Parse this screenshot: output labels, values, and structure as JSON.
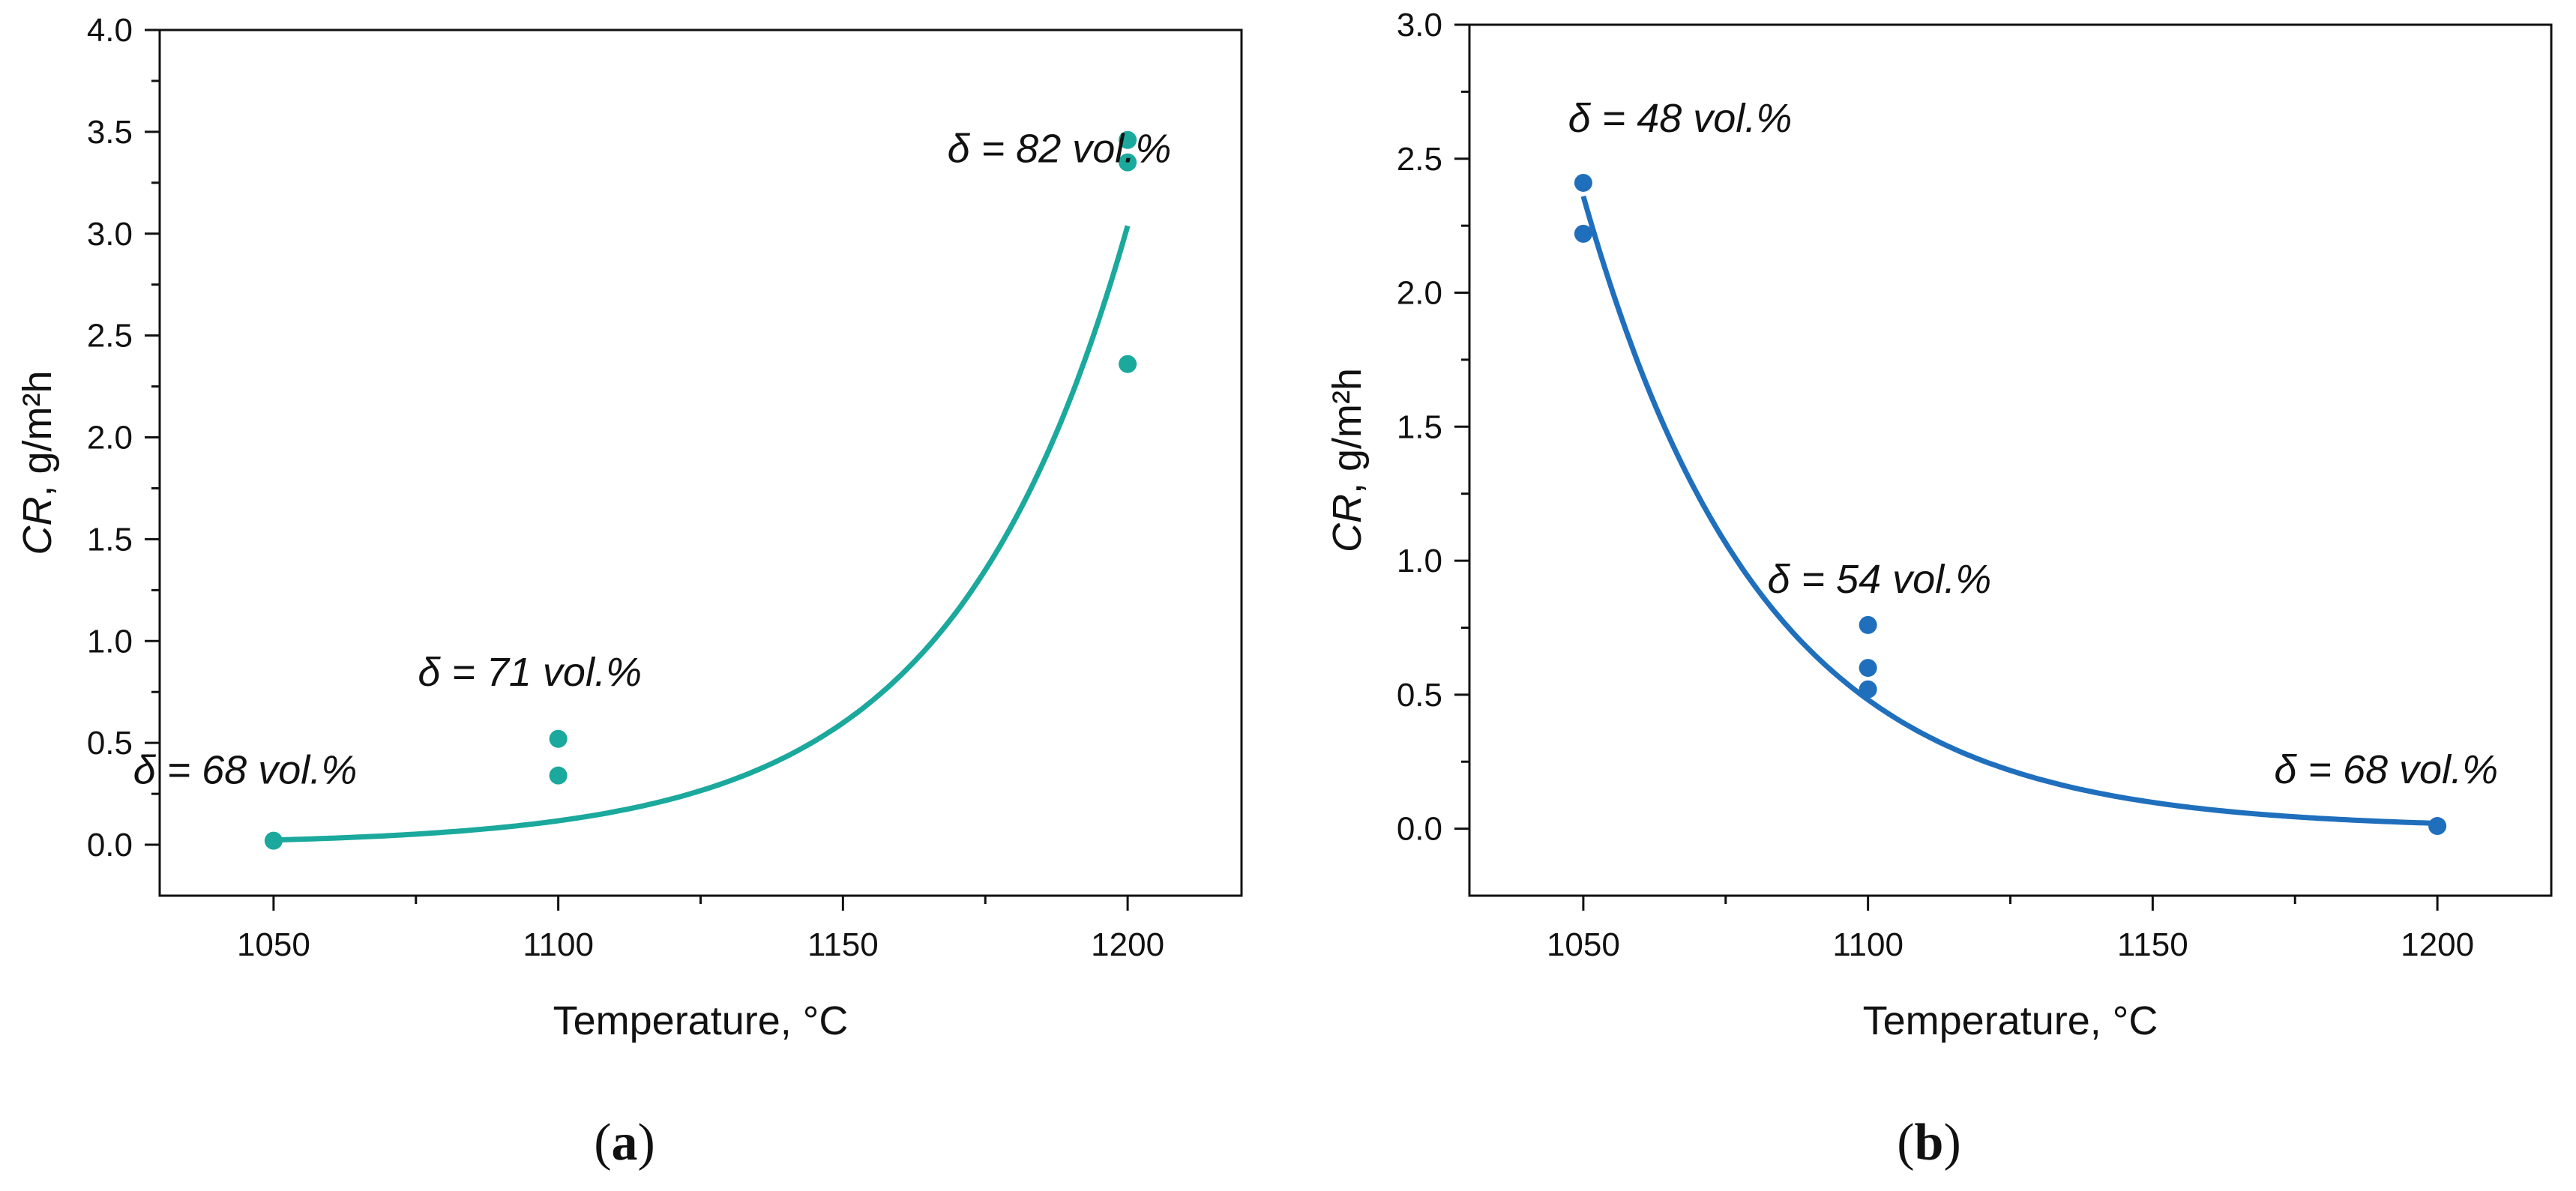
{
  "chart_data": [
    {
      "type": "scatter",
      "panel_label": "(a)",
      "color": "#1aa99c",
      "xlabel": "Temperature, °C",
      "ylabel_main": "CR",
      "ylabel_unit": ", g/m²h",
      "xlim": [
        1030,
        1220
      ],
      "ylim": [
        -0.25,
        4.0
      ],
      "xticks": [
        1050,
        1100,
        1150,
        1200
      ],
      "yticks": [
        0.0,
        0.5,
        1.0,
        1.5,
        2.0,
        2.5,
        3.0,
        3.5,
        4.0
      ],
      "points": [
        {
          "x": 1050,
          "y": 0.02
        },
        {
          "x": 1100,
          "y": 0.52
        },
        {
          "x": 1100,
          "y": 0.34
        },
        {
          "x": 1200,
          "y": 3.46
        },
        {
          "x": 1200,
          "y": 3.35
        },
        {
          "x": 1200,
          "y": 2.36
        }
      ],
      "fit": {
        "model": "exponential",
        "x_range": [
          1050,
          1200
        ],
        "a": 0.0232,
        "b": 0.0325,
        "x0": 1050
      },
      "annotations": [
        {
          "text": "δ = 68 vol.%",
          "x": 1045,
          "y": 0.3
        },
        {
          "text": "δ = 71 vol.%",
          "x": 1095,
          "y": 0.78
        },
        {
          "text": "δ = 82 vol.%",
          "x": 1188,
          "y": 3.35
        }
      ]
    },
    {
      "type": "scatter",
      "panel_label": "(b)",
      "color": "#1f6fbd",
      "xlabel": "Temperature, °C",
      "ylabel_main": "CR",
      "ylabel_unit": ", g/m²h",
      "xlim": [
        1030,
        1220
      ],
      "ylim": [
        -0.25,
        3.0
      ],
      "xticks": [
        1050,
        1100,
        1150,
        1200
      ],
      "yticks": [
        0.0,
        0.5,
        1.0,
        1.5,
        2.0,
        2.5,
        3.0
      ],
      "points": [
        {
          "x": 1050,
          "y": 2.41
        },
        {
          "x": 1050,
          "y": 2.22
        },
        {
          "x": 1100,
          "y": 0.76
        },
        {
          "x": 1100,
          "y": 0.6
        },
        {
          "x": 1100,
          "y": 0.52
        },
        {
          "x": 1200,
          "y": 0.01
        }
      ],
      "fit": {
        "model": "exponential",
        "x_range": [
          1050,
          1200
        ],
        "a": 2.36,
        "b": -0.0318,
        "x0": 1050
      },
      "annotations": [
        {
          "text": "δ = 48 vol.%",
          "x": 1067,
          "y": 2.6
        },
        {
          "text": "δ = 54 vol.%",
          "x": 1102,
          "y": 0.88
        },
        {
          "text": "δ = 68 vol.%",
          "x": 1191,
          "y": 0.17
        }
      ]
    }
  ]
}
